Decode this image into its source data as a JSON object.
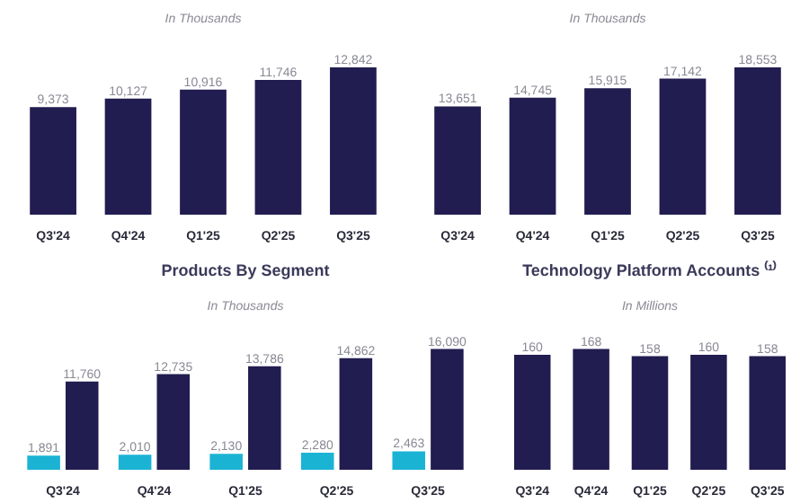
{
  "chart_data": [
    {
      "type": "bar",
      "subtitle": "In Thousands",
      "categories": [
        "Q3'24",
        "Q4'24",
        "Q1'25",
        "Q2'25",
        "Q3'25"
      ],
      "values": [
        9373,
        10127,
        10916,
        11746,
        12842
      ],
      "value_labels": [
        "9,373",
        "10,127",
        "10,916",
        "11,746",
        "12,842"
      ],
      "color": "#211d50",
      "grid": false
    },
    {
      "type": "bar",
      "subtitle": "In Thousands",
      "categories": [
        "Q3'24",
        "Q4'24",
        "Q1'25",
        "Q2'25",
        "Q3'25"
      ],
      "values": [
        13651,
        14745,
        15915,
        17142,
        18553
      ],
      "value_labels": [
        "13,651",
        "14,745",
        "15,915",
        "17,142",
        "18,553"
      ],
      "color": "#211d50",
      "grid": false
    },
    {
      "type": "bar",
      "title": "Products By Segment",
      "subtitle": "In Thousands",
      "categories": [
        "Q3'24",
        "Q4'24",
        "Q1'25",
        "Q2'25",
        "Q3'25"
      ],
      "series": [
        {
          "color": "#1bb3d4",
          "values": [
            1891,
            2010,
            2130,
            2280,
            2463
          ],
          "value_labels": [
            "1,891",
            "2,010",
            "2,130",
            "2,280",
            "2,463"
          ]
        },
        {
          "color": "#211d50",
          "values": [
            11760,
            12735,
            13786,
            14862,
            16090
          ],
          "value_labels": [
            "11,760",
            "12,735",
            "13,786",
            "14,862",
            "16,090"
          ]
        }
      ],
      "grid": false
    },
    {
      "type": "bar",
      "title": "Technology Platform Accounts ⁽¹⁾",
      "subtitle": "In Millions",
      "categories": [
        "Q3'24",
        "Q4'24",
        "Q1'25",
        "Q2'25",
        "Q3'25"
      ],
      "values": [
        160,
        168,
        158,
        160,
        158
      ],
      "color": "#211d50",
      "data_labels": true,
      "grid": false
    }
  ]
}
